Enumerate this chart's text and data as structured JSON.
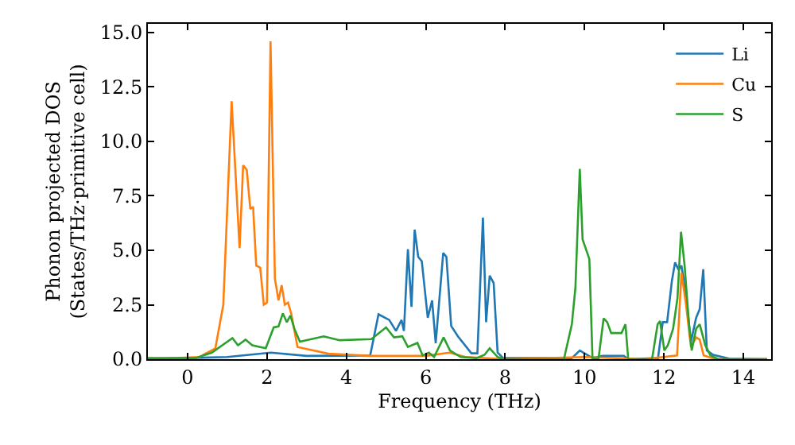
{
  "chart_data": {
    "type": "line",
    "xlabel": "Frequency (THz)",
    "ylabel": "Phonon projected DOS\n(States/THz·primitive cell)",
    "xlim": [
      -1.0,
      14.7
    ],
    "ylim": [
      0,
      15.4
    ],
    "xticks": [
      0,
      2,
      4,
      6,
      8,
      10,
      12,
      14
    ],
    "yticks": [
      {
        "value": 0,
        "label": "0.0"
      },
      {
        "value": 2.5,
        "label": "2.5"
      },
      {
        "value": 5,
        "label": "5.0"
      },
      {
        "value": 7.5,
        "label": "7.5"
      },
      {
        "value": 10,
        "label": "10.0"
      },
      {
        "value": 12.5,
        "label": "12.5"
      },
      {
        "value": 15,
        "label": "15.0"
      }
    ],
    "legend": "top right",
    "marker": "none",
    "line_style": "solid",
    "series": [
      {
        "name": "Li",
        "color": "#1f77b4",
        "x": [
          -1.0,
          1.0,
          2.1,
          3.0,
          4.6,
          4.81,
          5.08,
          5.25,
          5.39,
          5.45,
          5.55,
          5.64,
          5.72,
          5.81,
          5.9,
          6.05,
          6.16,
          6.25,
          6.44,
          6.52,
          6.64,
          6.81,
          7.15,
          7.3,
          7.44,
          7.52,
          7.61,
          7.71,
          7.81,
          7.95,
          9.68,
          9.88,
          10.0,
          10.2,
          10.45,
          10.99,
          11.1,
          11.85,
          11.97,
          12.08,
          12.2,
          12.28,
          12.37,
          12.44,
          12.55,
          12.68,
          12.81,
          12.9,
          12.99,
          13.08,
          13.24,
          13.64,
          14.6
        ],
        "values": [
          0.0,
          0.1,
          0.3,
          0.15,
          0.17,
          2.06,
          1.8,
          1.3,
          1.8,
          1.3,
          5.05,
          2.4,
          5.95,
          4.7,
          4.5,
          1.9,
          2.7,
          0.73,
          4.88,
          4.7,
          1.53,
          1.05,
          0.27,
          0.27,
          6.5,
          1.7,
          3.84,
          3.5,
          0.3,
          0.05,
          0.05,
          0.4,
          0.27,
          0.05,
          0.15,
          0.15,
          0.0,
          0.05,
          1.7,
          1.7,
          3.6,
          4.44,
          4.1,
          4.3,
          3.0,
          0.8,
          1.9,
          2.3,
          4.13,
          0.4,
          0.2,
          0.03,
          0.0
        ]
      },
      {
        "name": "Cu",
        "color": "#ff7f0e",
        "x": [
          -1.0,
          0.3,
          0.7,
          0.9,
          1.11,
          1.31,
          1.4,
          1.49,
          1.58,
          1.65,
          1.73,
          1.83,
          1.92,
          2.0,
          2.09,
          2.2,
          2.29,
          2.37,
          2.45,
          2.53,
          2.61,
          2.77,
          3.55,
          4.6,
          6.0,
          6.6,
          7.0,
          8.0,
          10.0,
          11.5,
          12.33,
          12.44,
          12.55,
          12.68,
          12.81,
          12.9,
          13.0,
          13.3,
          14.6
        ],
        "values": [
          0.0,
          0.1,
          0.5,
          2.5,
          11.85,
          5.1,
          8.9,
          8.7,
          6.9,
          7.0,
          4.3,
          4.2,
          2.5,
          2.6,
          14.6,
          3.7,
          2.7,
          3.4,
          2.5,
          2.6,
          2.1,
          0.56,
          0.25,
          0.15,
          0.15,
          0.3,
          0.1,
          0.0,
          0.1,
          0.0,
          0.17,
          3.96,
          2.6,
          0.56,
          1.0,
          0.9,
          0.17,
          0.0,
          0.0
        ]
      },
      {
        "name": "S",
        "color": "#2ca02c",
        "x": [
          -1.0,
          0.2,
          0.61,
          1.13,
          1.27,
          1.46,
          1.63,
          1.97,
          2.17,
          2.29,
          2.4,
          2.5,
          2.59,
          2.69,
          2.83,
          3.43,
          3.83,
          4.63,
          5.0,
          5.2,
          5.41,
          5.55,
          5.79,
          5.92,
          6.08,
          6.21,
          6.45,
          6.61,
          6.88,
          7.28,
          7.48,
          7.61,
          7.81,
          7.95,
          9.48,
          9.68,
          9.77,
          9.88,
          9.95,
          10.12,
          10.2,
          10.35,
          10.48,
          10.57,
          10.67,
          10.93,
          11.03,
          11.1,
          11.7,
          11.84,
          11.9,
          12.01,
          12.1,
          12.23,
          12.34,
          12.43,
          12.52,
          12.63,
          12.7,
          12.81,
          12.9,
          13.04,
          13.17,
          13.37,
          14.6
        ],
        "values": [
          0.05,
          0.05,
          0.3,
          0.97,
          0.64,
          0.9,
          0.64,
          0.5,
          1.46,
          1.5,
          2.1,
          1.7,
          2.0,
          1.4,
          0.8,
          1.05,
          0.87,
          0.92,
          1.46,
          1.0,
          1.05,
          0.56,
          0.75,
          0.17,
          0.3,
          0.1,
          1.0,
          0.4,
          0.1,
          0.05,
          0.2,
          0.5,
          0.1,
          0.0,
          0.0,
          1.6,
          3.3,
          8.74,
          5.5,
          4.6,
          0.05,
          0.0,
          1.87,
          1.7,
          1.2,
          1.2,
          1.6,
          0.0,
          0.0,
          1.6,
          1.75,
          0.4,
          0.65,
          1.4,
          2.8,
          5.85,
          4.3,
          1.6,
          0.4,
          1.4,
          1.6,
          0.65,
          0.17,
          0.0,
          0.0
        ]
      }
    ]
  }
}
